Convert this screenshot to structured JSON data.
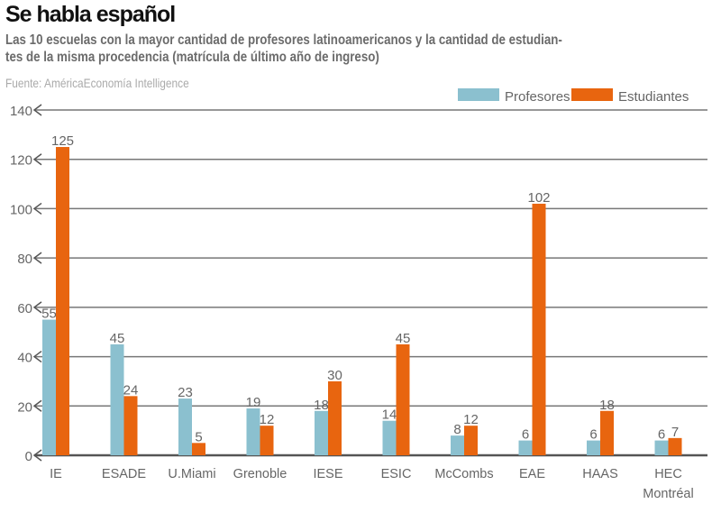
{
  "chart_data": {
    "type": "bar",
    "title": "Se habla español",
    "subtitle": "Las 10 escuelas con la mayor cantidad de profesores latinoamericanos y la cantidad de estudiantes de la misma procedencia (matrícula de último año de ingreso)",
    "subtitle_line1": "Las 10 escuelas con la mayor cantidad de profesores latinoamericanos y la cantidad de estudian-",
    "subtitle_line2": "tes de la misma procedencia (matrícula de último año de ingreso)",
    "source": "Fuente: AméricaEconomía Intelligence",
    "categories": [
      "IE",
      "ESADE",
      "U.Miami",
      "Grenoble",
      "IESE",
      "ESIC",
      "McCombs",
      "EAE",
      "HAAS",
      "HEC Montréal"
    ],
    "series": [
      {
        "name": "Profesores",
        "color": "#8bc0cf",
        "values": [
          55,
          45,
          23,
          19,
          18,
          14,
          8,
          6,
          6,
          6
        ]
      },
      {
        "name": "Estudiantes",
        "color": "#e8650f",
        "values": [
          125,
          24,
          5,
          12,
          30,
          45,
          12,
          102,
          18,
          7
        ]
      }
    ],
    "ylim": [
      0,
      140
    ],
    "yticks": [
      0,
      20,
      40,
      60,
      80,
      100,
      120,
      140
    ],
    "grid": true,
    "legend": "top-right",
    "xlabel": "",
    "ylabel": ""
  }
}
